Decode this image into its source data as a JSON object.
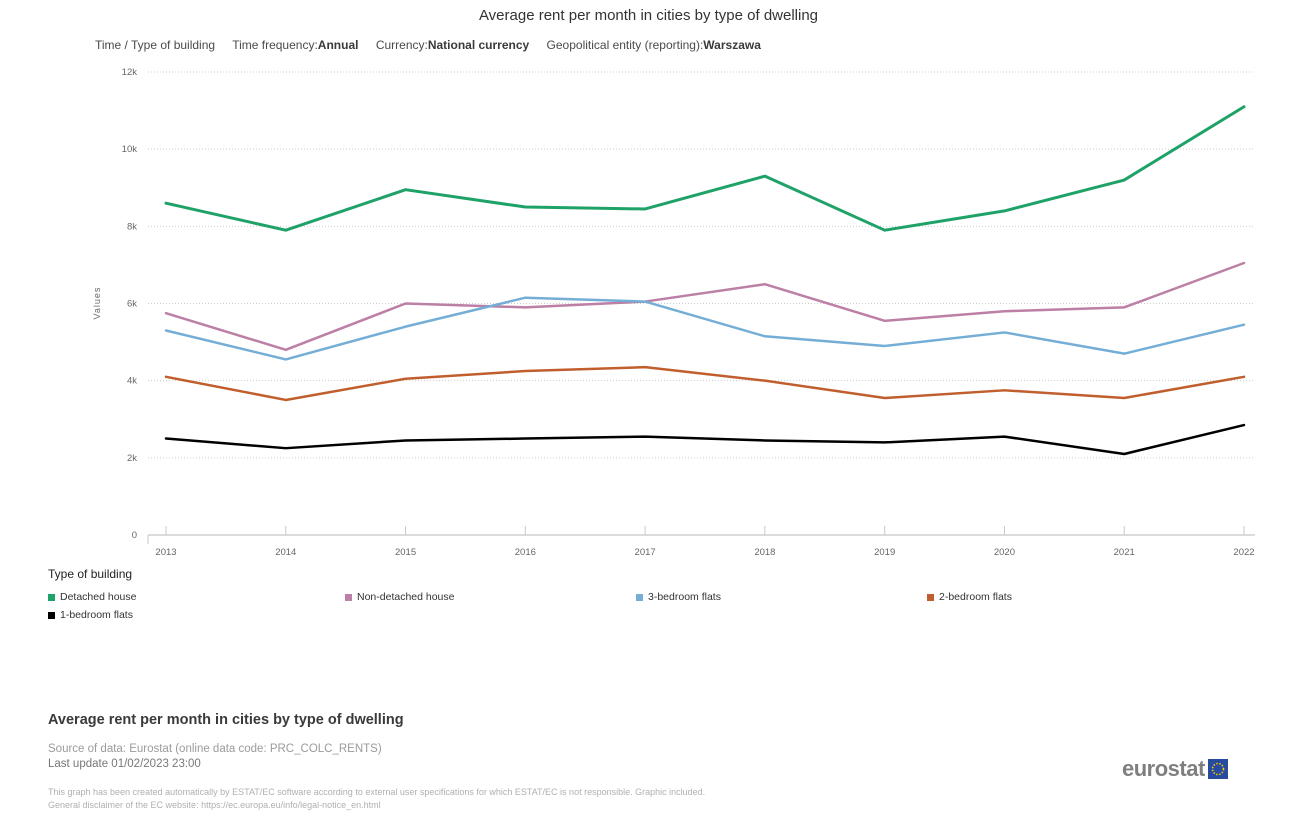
{
  "header": {
    "title": "Average rent per month in cities by type of dwelling",
    "dimensions_label": "Time / Type of building",
    "filters": [
      {
        "label": "Time frequency:",
        "value": "Annual"
      },
      {
        "label": "Currency:",
        "value": "National currency"
      },
      {
        "label": "Geopolitical entity (reporting):",
        "value": "Warszawa"
      }
    ]
  },
  "chart_data": {
    "type": "line",
    "title": "Average rent per month in cities by type of dwelling",
    "xlabel": "",
    "ylabel": "Values",
    "x": [
      "2013",
      "2014",
      "2015",
      "2016",
      "2017",
      "2018",
      "2019",
      "2020",
      "2021",
      "2022"
    ],
    "ylim": [
      0,
      12000
    ],
    "ytick_values": [
      0,
      2000,
      4000,
      6000,
      8000,
      10000,
      12000
    ],
    "ytick_labels": [
      "0",
      "2k",
      "4k",
      "6k",
      "8k",
      "10k",
      "12k"
    ],
    "grid": "horizontal-dotted",
    "legend_position": "bottom",
    "series": [
      {
        "name": "Detached house",
        "color": "#1fa268",
        "values": [
          8600,
          7900,
          8950,
          8500,
          8450,
          9300,
          7900,
          8400,
          9200,
          11100
        ]
      },
      {
        "name": "Non-detached house",
        "color": "#bc7fa5",
        "values": [
          5750,
          4800,
          6000,
          5900,
          6050,
          6500,
          5550,
          5800,
          5900,
          7050
        ]
      },
      {
        "name": "3-bedroom flats",
        "color": "#74aed6",
        "values": [
          5300,
          4550,
          5400,
          6150,
          6050,
          5150,
          4900,
          5250,
          4700,
          5450
        ]
      },
      {
        "name": "2-bedroom flats",
        "color": "#c05f2d",
        "values": [
          4100,
          3500,
          4050,
          4250,
          4350,
          4000,
          3550,
          3750,
          3550,
          4100
        ]
      },
      {
        "name": "1-bedroom flats",
        "color": "#000000",
        "values": [
          2500,
          2250,
          2450,
          2500,
          2550,
          2450,
          2400,
          2550,
          2100,
          2850
        ]
      }
    ]
  },
  "legend": {
    "title": "Type of building"
  },
  "footer": {
    "title": "Average rent per month in cities by type of dwelling",
    "source": "Source of data: Eurostat (online data code: PRC_COLC_RENTS)",
    "last_update": "Last update 01/02/2023 23:00",
    "disclaimer_line1": "This graph has been created automatically by ESTAT/EC software according to external user specifications for which ESTAT/EC is not responsible. Graphic included.",
    "disclaimer_line2": "General disclaimer of the EC website: https://ec.europa.eu/info/legal-notice_en.html",
    "logo_text": "eurostat"
  },
  "colors": {
    "grid": "#cccccc",
    "axis": "#c8c8c8",
    "tick_text": "#666666",
    "eu_blue": "#274b9f",
    "eu_stars": "#ffcc00"
  }
}
